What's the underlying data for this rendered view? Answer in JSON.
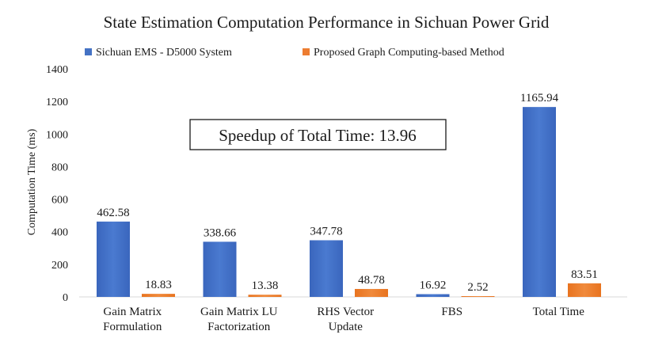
{
  "chart_data": {
    "type": "bar",
    "title": "State Estimation Computation Performance in Sichuan Power Grid",
    "ylabel": "Computation Time (ms)",
    "xlabel": "",
    "ylim": [
      0,
      1400
    ],
    "yticks": [
      0,
      200,
      400,
      600,
      800,
      1000,
      1200,
      1400
    ],
    "grid": false,
    "legend_position": "top",
    "categories": [
      [
        "Gain Matrix",
        "Formulation"
      ],
      [
        "Gain Matrix LU",
        "Factorization"
      ],
      [
        "RHS Vector",
        "Update"
      ],
      [
        "FBS"
      ],
      [
        "Total Time"
      ]
    ],
    "series": [
      {
        "name": "Sichuan EMS - D5000 System",
        "color": "#4472c4",
        "values": [
          462.58,
          338.66,
          347.78,
          16.92,
          1165.94
        ],
        "labels": [
          "462.58",
          "338.66",
          "347.78",
          "16.92",
          "1165.94"
        ]
      },
      {
        "name": "Proposed Graph Computing-based Method",
        "color": "#ed7d31",
        "values": [
          18.83,
          13.38,
          48.78,
          2.52,
          83.51
        ],
        "labels": [
          "18.83",
          "13.38",
          "48.78",
          "2.52",
          "83.51"
        ]
      }
    ],
    "annotation": "Speedup of Total Time: 13.96"
  }
}
